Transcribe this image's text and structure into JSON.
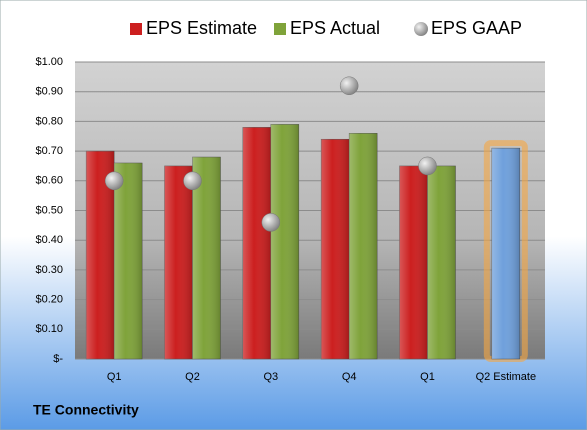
{
  "chart_data": {
    "type": "bar",
    "title": "TE Connectivity",
    "categories": [
      "Q1",
      "Q2",
      "Q3",
      "Q4",
      "Q1",
      "Q2 Estimate"
    ],
    "series": [
      {
        "name": "EPS Estimate",
        "color": "#cc1f1f",
        "colors": [
          "#cc1f1f",
          "#cc1f1f",
          "#cc1f1f",
          "#cc1f1f",
          "#cc1f1f",
          "#6fa0dc"
        ],
        "values": [
          0.7,
          0.65,
          0.78,
          0.74,
          0.65,
          0.71
        ]
      },
      {
        "name": "EPS Actual",
        "color": "#7fa33a",
        "values": [
          0.66,
          0.68,
          0.79,
          0.76,
          0.65,
          null
        ]
      },
      {
        "name": "EPS GAAP",
        "type": "scatter",
        "color": "#a6a6a6",
        "values": [
          0.6,
          0.6,
          0.46,
          0.92,
          0.65,
          null
        ]
      }
    ],
    "ylim": [
      0,
      1.0
    ],
    "yticks": [
      {
        "value": 0,
        "label": "$-"
      },
      {
        "value": 0.1,
        "label": "$0.10"
      },
      {
        "value": 0.2,
        "label": "$0.20"
      },
      {
        "value": 0.3,
        "label": "$0.30"
      },
      {
        "value": 0.4,
        "label": "$0.40"
      },
      {
        "value": 0.5,
        "label": "$0.50"
      },
      {
        "value": 0.6,
        "label": "$0.60"
      },
      {
        "value": 0.7,
        "label": "$0.70"
      },
      {
        "value": 0.8,
        "label": "$0.80"
      },
      {
        "value": 0.9,
        "label": "$0.90"
      },
      {
        "value": 1.0,
        "label": "$1.00"
      }
    ],
    "grid": true
  }
}
